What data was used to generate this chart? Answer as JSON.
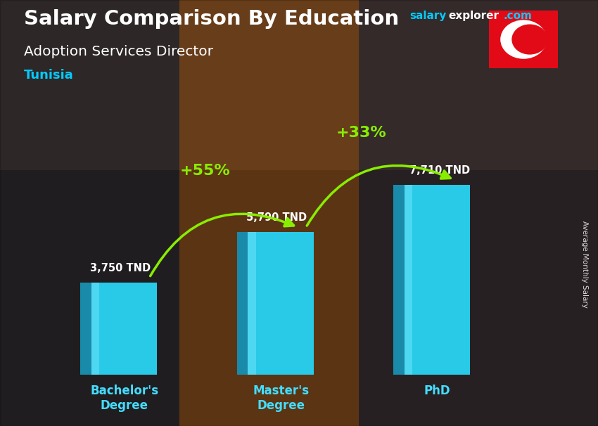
{
  "title": "Salary Comparison By Education",
  "subtitle": "Adoption Services Director",
  "country": "Tunisia",
  "categories": [
    "Bachelor's\nDegree",
    "Master's\nDegree",
    "PhD"
  ],
  "values": [
    3750,
    5790,
    7710
  ],
  "value_labels": [
    "3,750 TND",
    "5,790 TND",
    "7,710 TND"
  ],
  "pct_labels": [
    "+55%",
    "+33%"
  ],
  "bar_front_color": "#29c9e8",
  "bar_left_color": "#1a8aaa",
  "bar_top_color": "#55ddee",
  "bg_color": "#6b4423",
  "title_color": "#ffffff",
  "subtitle_color": "#ffffff",
  "country_color": "#00ccff",
  "value_color": "#ffffff",
  "pct_color": "#88ee00",
  "arrow_color": "#88ee00",
  "xticklabel_color": "#44ddff",
  "ylabel": "Average Monthly Salary",
  "brand1_text": "salary",
  "brand1_color": "#00ccff",
  "brand2_text": "explorer",
  "brand2_color": "#ffffff",
  "brand3_text": ".com",
  "brand3_color": "#00ccff",
  "flag_bg": "#e30a17",
  "flag_circle_color": "#ffffff",
  "flag_crescent_color": "#e30a17",
  "flag_star_color": "#e30a17",
  "ylim": [
    0,
    9500
  ],
  "bar_width": 0.42,
  "bar_depth": 0.07,
  "positions": [
    1,
    2,
    3
  ],
  "fig_width": 8.5,
  "fig_height": 6.06,
  "dpi": 100
}
